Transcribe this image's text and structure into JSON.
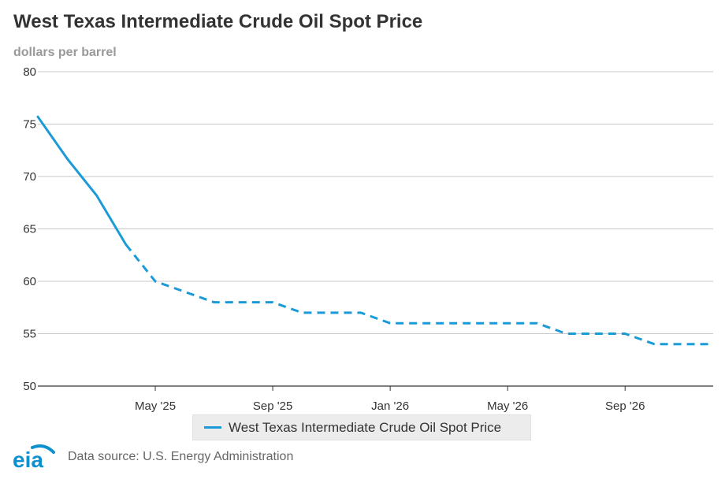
{
  "header": {
    "title": "West Texas Intermediate Crude Oil Spot Price",
    "subtitle": "dollars per barrel"
  },
  "footer": {
    "logo_text": "eia",
    "source": "Data source: U.S. Energy Administration"
  },
  "colors": {
    "series": "#1a9bd7",
    "grid": "#c8c8c8",
    "axis": "#333333",
    "logo": "#0e8fcf"
  },
  "chart_data": {
    "type": "line",
    "title": "West Texas Intermediate Crude Oil Spot Price",
    "ylabel": "dollars per barrel",
    "xlabel": "",
    "ylim": [
      50,
      80
    ],
    "yticks": [
      50,
      55,
      60,
      65,
      70,
      75,
      80
    ],
    "xlim": [
      "2025-01",
      "2026-12"
    ],
    "xticks": [
      {
        "x": "2025-05",
        "label": "May '25"
      },
      {
        "x": "2025-09",
        "label": "Sep '25"
      },
      {
        "x": "2026-01",
        "label": "Jan '26"
      },
      {
        "x": "2026-05",
        "label": "May '26"
      },
      {
        "x": "2026-09",
        "label": "Sep '26"
      }
    ],
    "grid": true,
    "legend": "bottom-center",
    "series": [
      {
        "name": "West Texas Intermediate Crude Oil Spot Price",
        "x": [
          "2025-01",
          "2025-02",
          "2025-03",
          "2025-04",
          "2025-05",
          "2025-06",
          "2025-07",
          "2025-08",
          "2025-09",
          "2025-10",
          "2025-11",
          "2025-12",
          "2026-01",
          "2026-02",
          "2026-03",
          "2026-04",
          "2026-05",
          "2026-06",
          "2026-07",
          "2026-08",
          "2026-09",
          "2026-10",
          "2026-11",
          "2026-12"
        ],
        "values": [
          75.7,
          71.7,
          68.2,
          63.5,
          60.0,
          59.0,
          58.0,
          58.0,
          58.0,
          57.0,
          57.0,
          57.0,
          56.0,
          56.0,
          56.0,
          56.0,
          56.0,
          56.0,
          55.0,
          55.0,
          55.0,
          54.0,
          54.0,
          54.0
        ],
        "historical_through": "2025-04",
        "forecast_from": "2025-04"
      }
    ]
  }
}
